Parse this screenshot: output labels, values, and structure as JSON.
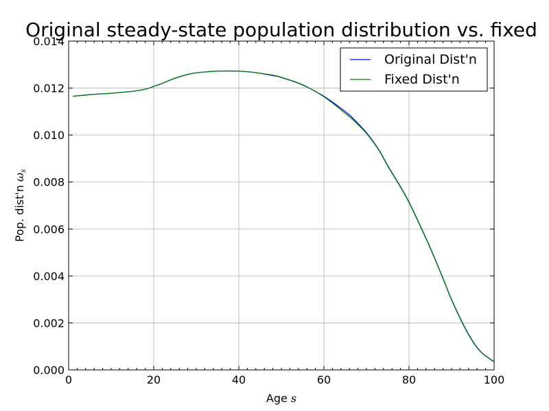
{
  "chart_data": {
    "type": "line",
    "title": "Original steady-state population distribution vs. fixed",
    "xlabel_text": "Age ",
    "xlabel_symbol": "s",
    "ylabel_text": "Pop. dist'n ",
    "ylabel_symbol": "ω",
    "ylabel_subscript": "s",
    "xlim": [
      0,
      100
    ],
    "ylim": [
      0.0,
      0.014
    ],
    "x_ticks": [
      0,
      20,
      40,
      60,
      80,
      100
    ],
    "x_tick_labels": [
      "0",
      "20",
      "40",
      "60",
      "80",
      "100"
    ],
    "y_ticks": [
      0.0,
      0.002,
      0.004,
      0.006,
      0.008,
      0.01,
      0.012,
      0.014
    ],
    "y_tick_labels": [
      "0.000",
      "0.002",
      "0.004",
      "0.006",
      "0.008",
      "0.010",
      "0.012",
      "0.014"
    ],
    "grid": true,
    "legend_position": "top-right",
    "series": [
      {
        "name": "Original Dist'n",
        "color": "#0000ff",
        "x": [
          1,
          5,
          10,
          15,
          18,
          20,
          22,
          25,
          28,
          30,
          33,
          35,
          38,
          40,
          43,
          45,
          48,
          50,
          55,
          60,
          65,
          67,
          70,
          73,
          75,
          78,
          80,
          83,
          85,
          88,
          90,
          93,
          95,
          97,
          100
        ],
        "y": [
          0.01165,
          0.01172,
          0.01178,
          0.01186,
          0.01195,
          0.01207,
          0.0122,
          0.01242,
          0.01258,
          0.01265,
          0.0127,
          0.01272,
          0.01273,
          0.01272,
          0.01268,
          0.01263,
          0.01253,
          0.01245,
          0.01213,
          0.01165,
          0.011,
          0.01068,
          0.0101,
          0.00935,
          0.0087,
          0.0078,
          0.00715,
          0.006,
          0.0052,
          0.0039,
          0.003,
          0.00185,
          0.00122,
          0.00075,
          0.00035
        ]
      },
      {
        "name": "Fixed Dist'n",
        "color": "#008000",
        "x": [
          1,
          5,
          10,
          15,
          18,
          20,
          22,
          25,
          28,
          30,
          33,
          35,
          38,
          40,
          43,
          45,
          48,
          50,
          55,
          60,
          65,
          67,
          70,
          73,
          75,
          78,
          80,
          83,
          85,
          88,
          90,
          93,
          95,
          97,
          100
        ],
        "y": [
          0.01165,
          0.01172,
          0.01178,
          0.01186,
          0.01195,
          0.01207,
          0.0122,
          0.01242,
          0.01258,
          0.01265,
          0.0127,
          0.01272,
          0.01273,
          0.01272,
          0.01268,
          0.01263,
          0.01255,
          0.01246,
          0.01214,
          0.01163,
          0.01093,
          0.01062,
          0.01007,
          0.00933,
          0.00868,
          0.00778,
          0.00713,
          0.00598,
          0.00518,
          0.00388,
          0.00298,
          0.00183,
          0.0012,
          0.00074,
          0.00034
        ]
      }
    ]
  }
}
